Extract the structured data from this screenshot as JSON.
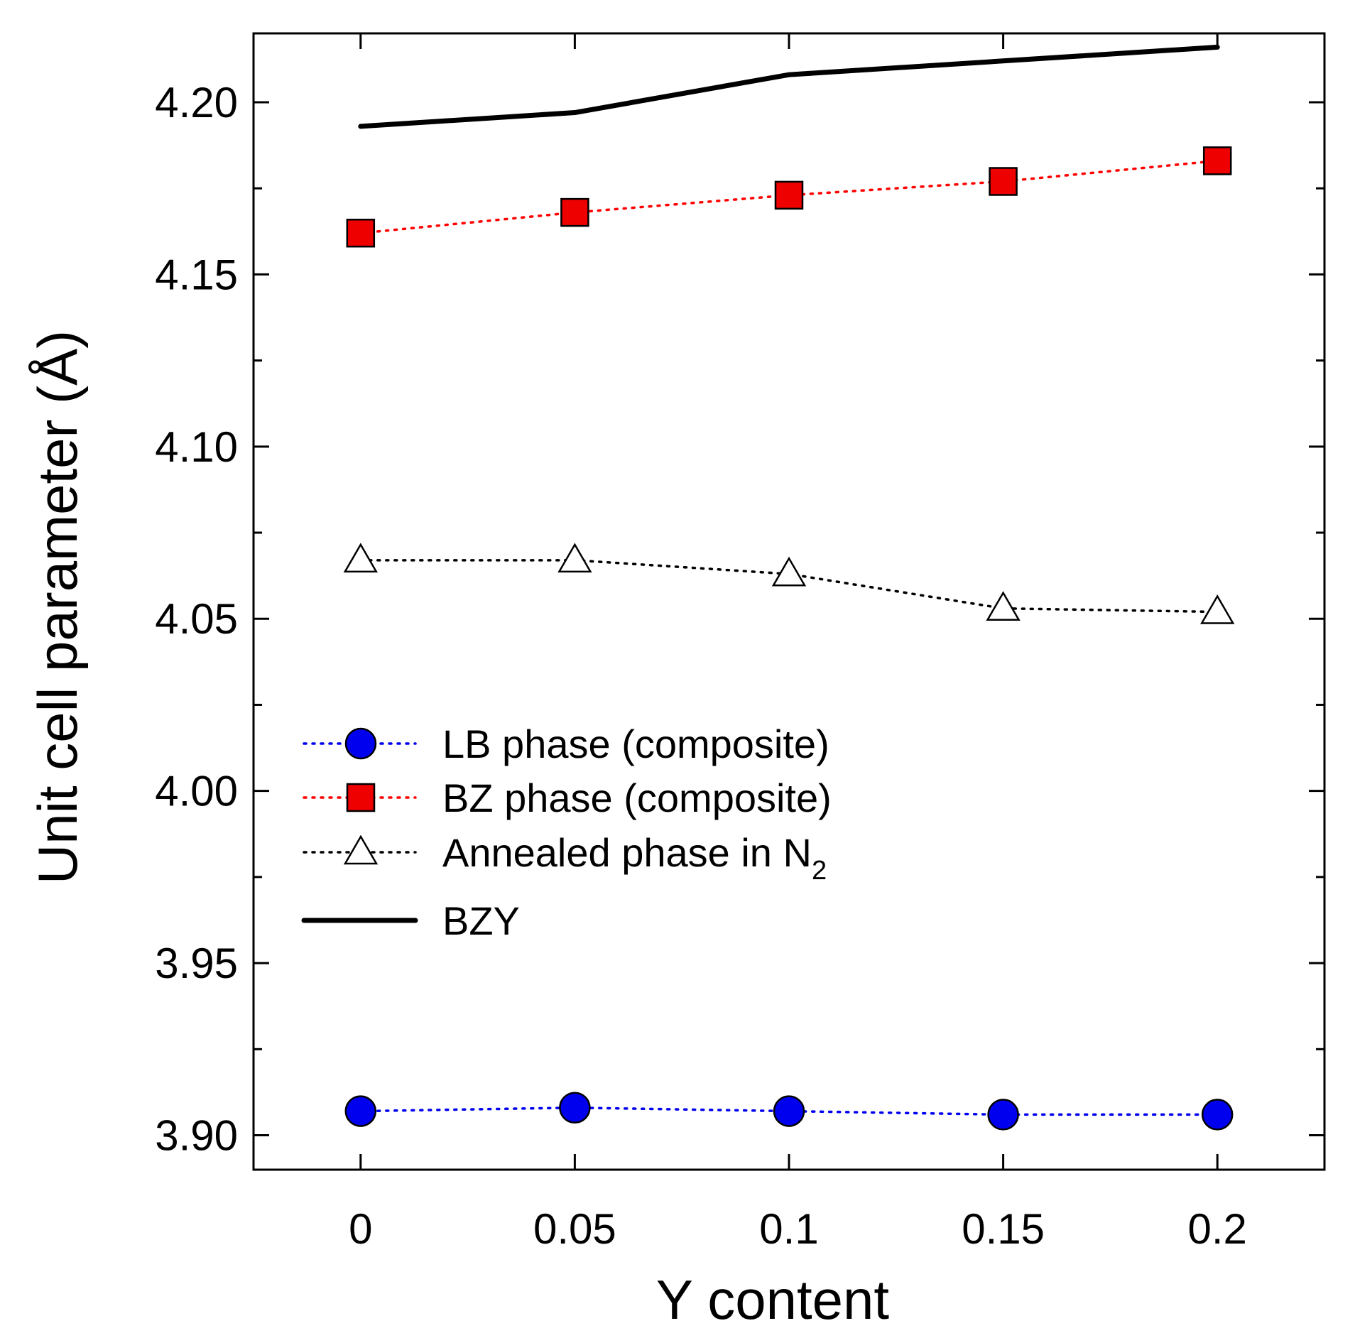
{
  "chart_data": {
    "type": "line",
    "title": "",
    "xlabel": "Y content",
    "ylabel": "Unit cell parameter (Å)",
    "x": [
      0,
      0.05,
      0.1,
      0.15,
      0.2
    ],
    "xlim": [
      -0.025,
      0.225
    ],
    "ylim": [
      3.89,
      4.22
    ],
    "xticks": [
      0,
      0.05,
      0.1,
      0.15,
      0.2
    ],
    "xtick_labels": [
      "0",
      "0.05",
      "0.1",
      "0.15",
      "0.2"
    ],
    "yticks": [
      3.9,
      3.95,
      4.0,
      4.05,
      4.1,
      4.15,
      4.2
    ],
    "ytick_labels": [
      "3.90",
      "3.95",
      "4.00",
      "4.05",
      "4.10",
      "4.15",
      "4.20"
    ],
    "legend_position": "center-left",
    "series": [
      {
        "name": "LB phase (composite)",
        "values": [
          3.907,
          3.908,
          3.907,
          3.906,
          3.906
        ],
        "color": "#0000ee",
        "line": "dotted",
        "marker": "circle",
        "marker_fill": "#0000ee"
      },
      {
        "name": "BZ phase (composite)",
        "values": [
          4.162,
          4.168,
          4.173,
          4.177,
          4.183
        ],
        "color": "#ff0000",
        "line": "dotted",
        "marker": "square",
        "marker_fill": "#ee0000"
      },
      {
        "name": "Annealed phase in N",
        "name_subscript": "2",
        "values": [
          4.067,
          4.067,
          4.063,
          4.053,
          4.052
        ],
        "color": "#000000",
        "line": "dotted",
        "marker": "triangle",
        "marker_fill": "#ffffff"
      },
      {
        "name": "BZY",
        "values": [
          4.193,
          4.197,
          4.208,
          4.212,
          4.216
        ],
        "color": "#000000",
        "line": "solid",
        "marker": "none"
      }
    ]
  }
}
